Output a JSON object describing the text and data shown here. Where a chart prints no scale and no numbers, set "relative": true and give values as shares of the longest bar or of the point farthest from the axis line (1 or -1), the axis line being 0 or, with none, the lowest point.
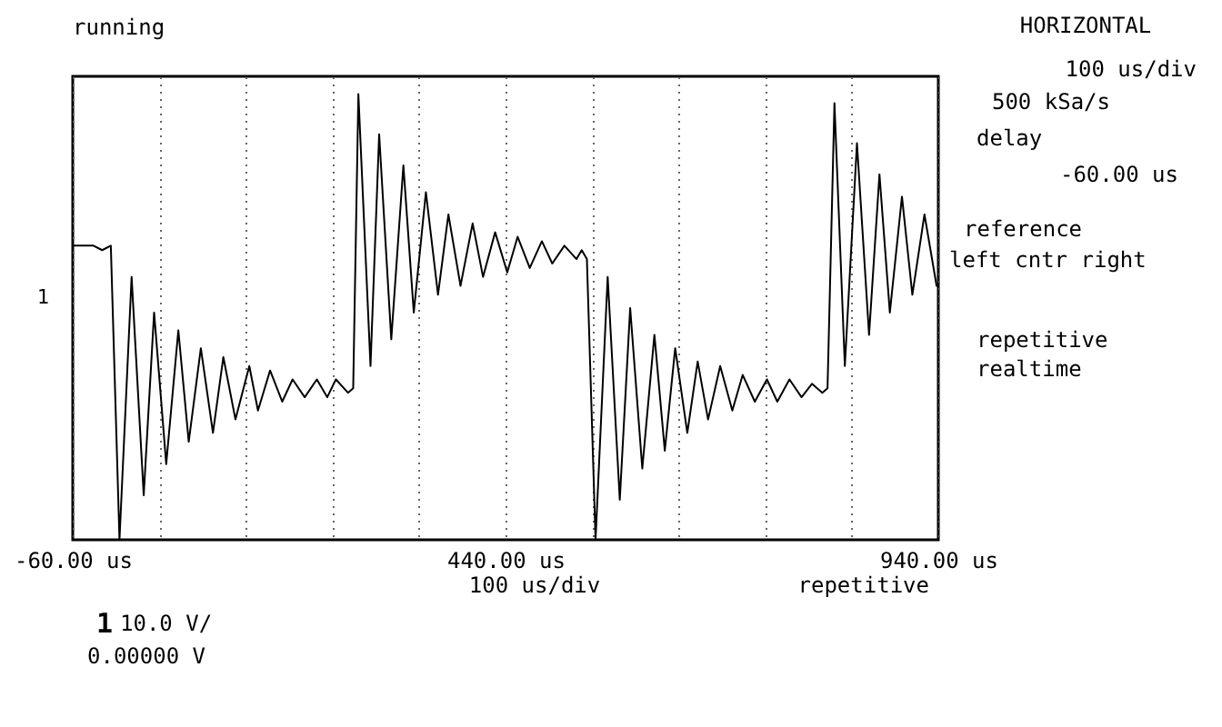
{
  "chart_data": {
    "type": "line",
    "relative": true,
    "x": [
      -60,
      -36,
      -26,
      -16,
      -6,
      8,
      22,
      34,
      48,
      62,
      74,
      88,
      102,
      114,
      128,
      144,
      154,
      168,
      182,
      194,
      208,
      222,
      234,
      244,
      258,
      264,
      270,
      284,
      294,
      308,
      322,
      334,
      348,
      362,
      374,
      388,
      402,
      414,
      428,
      442,
      454,
      468,
      482,
      494,
      508,
      522,
      528,
      534,
      544,
      558,
      572,
      584,
      598,
      612,
      624,
      636,
      650,
      662,
      674,
      688,
      702,
      714,
      728,
      742,
      754,
      768,
      782,
      794,
      806,
      812,
      820,
      832,
      846,
      860,
      872,
      884,
      898,
      910,
      924,
      938
    ],
    "series": [
      {
        "color": "#000000",
        "values": [
          0.66,
          0.66,
          0.65,
          0.66,
          0,
          0.59,
          0.1,
          0.51,
          0.17,
          0.47,
          0.22,
          0.43,
          0.24,
          0.41,
          0.27,
          0.39,
          0.29,
          0.38,
          0.31,
          0.36,
          0.32,
          0.36,
          0.32,
          0.36,
          0.33,
          0.34,
          1,
          0.39,
          0.91,
          0.45,
          0.84,
          0.51,
          0.78,
          0.55,
          0.73,
          0.57,
          0.71,
          0.59,
          0.69,
          0.6,
          0.68,
          0.61,
          0.67,
          0.62,
          0.66,
          0.63,
          0.65,
          0.63,
          0,
          0.59,
          0.09,
          0.52,
          0.16,
          0.46,
          0.2,
          0.43,
          0.24,
          0.4,
          0.27,
          0.39,
          0.29,
          0.37,
          0.31,
          0.36,
          0.31,
          0.36,
          0.32,
          0.35,
          0.33,
          0.34,
          0.98,
          0.39,
          0.89,
          0.46,
          0.82,
          0.51,
          0.77,
          0.55,
          0.73,
          0.57
        ]
      }
    ],
    "xlim": [
      -60,
      940
    ],
    "xticks": [
      {
        "value": -60,
        "label": "-60.00 us"
      },
      {
        "value": 40,
        "label": null
      },
      {
        "value": 140,
        "label": null
      },
      {
        "value": 240,
        "label": null
      },
      {
        "value": 340,
        "label": null
      },
      {
        "value": 440,
        "label": "440.00 us"
      },
      {
        "value": 540,
        "label": null
      },
      {
        "value": 640,
        "label": null
      },
      {
        "value": 740,
        "label": null
      },
      {
        "value": 840,
        "label": null
      },
      {
        "value": 940,
        "label": "940.00 us"
      }
    ],
    "tick_labels": "x",
    "grid": "x",
    "line_style": "solid",
    "annotations": [
      "running",
      "100  us/div",
      "repetitive",
      "1",
      "10.0  V/",
      "0.00000  V",
      "HORIZONTAL",
      "100  us/div",
      "500 kSa/s",
      "delay",
      "-60.00 us",
      "reference",
      "left cntr right",
      "repetitive",
      "realtime",
      "1"
    ]
  }
}
